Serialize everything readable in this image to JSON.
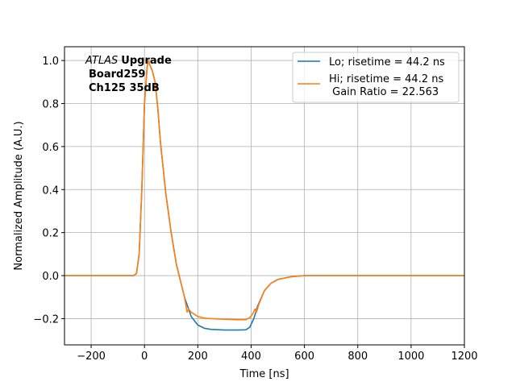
{
  "chart_data": {
    "type": "line",
    "title": "",
    "xlabel": "Time [ns]",
    "ylabel": "Normalized Amplitude (A.U.)",
    "xlim": [
      -300,
      1200
    ],
    "ylim": [
      -0.322,
      1.064
    ],
    "xticks": [
      -200,
      0,
      200,
      400,
      600,
      800,
      1000,
      1200
    ],
    "xtick_labels": [
      "−200",
      "0",
      "200",
      "400",
      "600",
      "800",
      "1000",
      "1200"
    ],
    "yticks": [
      -0.2,
      0.0,
      0.2,
      0.4,
      0.6,
      0.8,
      1.0
    ],
    "ytick_labels": [
      "−0.2",
      "0.0",
      "0.2",
      "0.4",
      "0.6",
      "0.8",
      "1.0"
    ],
    "grid": true,
    "legend_position": "top-right",
    "annotation": {
      "italic": "ATLAS",
      "bold": "Upgrade",
      "line2": "Board259",
      "line3": "Ch125 35dB"
    },
    "series": [
      {
        "name": "Lo; risetime = 44.2 ns",
        "color": "#1f77b4",
        "x": [
          -300,
          -40,
          -30,
          -20,
          -10,
          0,
          10,
          15,
          20,
          30,
          40,
          50,
          60,
          80,
          100,
          120,
          150,
          175,
          200,
          225,
          250,
          300,
          350,
          380,
          395,
          410,
          425,
          450,
          475,
          500,
          550,
          600,
          800,
          1000,
          1200
        ],
        "y": [
          0,
          0,
          0.01,
          0.1,
          0.4,
          0.8,
          0.97,
          1.0,
          0.98,
          0.95,
          0.9,
          0.78,
          0.62,
          0.38,
          0.2,
          0.05,
          -0.1,
          -0.19,
          -0.23,
          -0.245,
          -0.25,
          -0.253,
          -0.253,
          -0.252,
          -0.24,
          -0.2,
          -0.14,
          -0.07,
          -0.035,
          -0.018,
          -0.005,
          0,
          0,
          0,
          0
        ]
      },
      {
        "name": "Hi; risetime = 44.2 ns\n Gain Ratio = 22.563",
        "label_line1": "Hi; risetime = 44.2 ns",
        "label_line2": " Gain Ratio = 22.563",
        "color": "#ff7f0e",
        "x": [
          -300,
          -40,
          -30,
          -20,
          -10,
          0,
          10,
          15,
          20,
          30,
          40,
          50,
          60,
          80,
          100,
          120,
          150,
          160,
          165,
          175,
          200,
          225,
          250,
          300,
          350,
          380,
          395,
          405,
          415,
          420,
          430,
          450,
          475,
          500,
          550,
          600,
          800,
          1000,
          1200
        ],
        "y": [
          0,
          0,
          0.01,
          0.1,
          0.4,
          0.8,
          0.97,
          1.0,
          0.98,
          0.95,
          0.9,
          0.78,
          0.62,
          0.38,
          0.2,
          0.05,
          -0.1,
          -0.17,
          -0.155,
          -0.17,
          -0.19,
          -0.198,
          -0.2,
          -0.203,
          -0.205,
          -0.205,
          -0.195,
          -0.18,
          -0.155,
          -0.17,
          -0.13,
          -0.07,
          -0.035,
          -0.018,
          -0.005,
          0,
          0,
          0,
          0
        ]
      }
    ]
  }
}
